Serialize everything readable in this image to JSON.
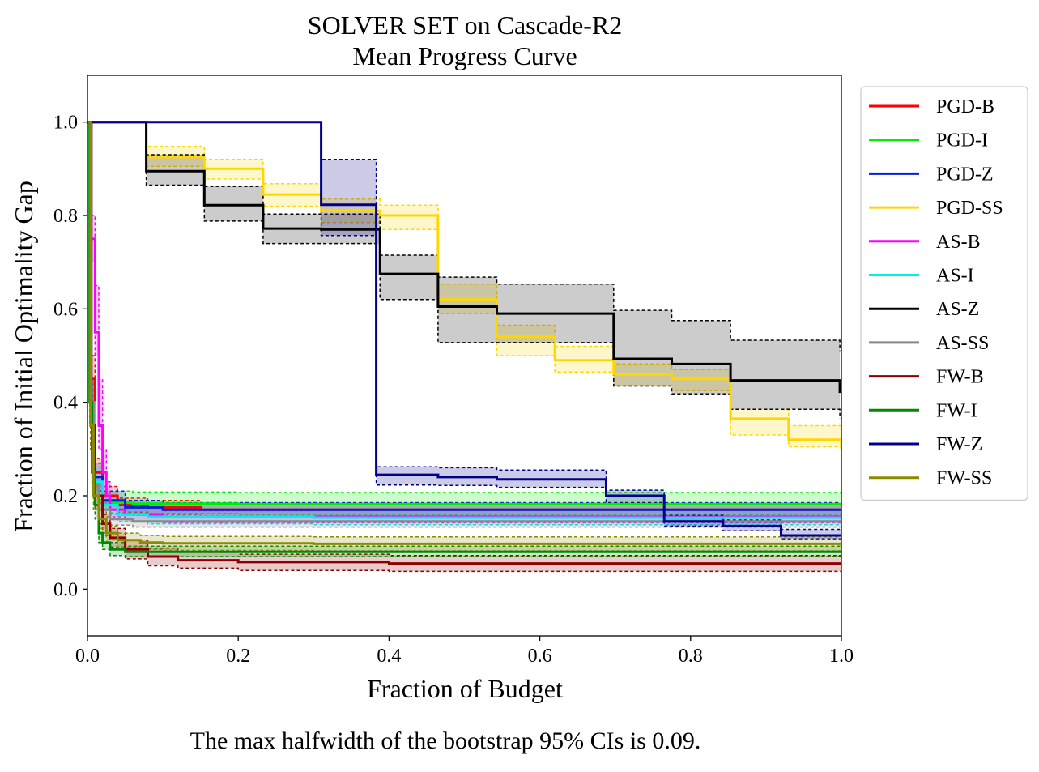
{
  "chart_data": {
    "type": "line",
    "title": "SOLVER SET on Cascade-R2",
    "subtitle": "Mean Progress Curve",
    "xlabel": "Fraction of Budget",
    "ylabel": "Fraction of Initial Optimality Gap",
    "xlim": [
      0.0,
      1.0
    ],
    "ylim": [
      -0.1,
      1.1
    ],
    "xticks": [
      "0.0",
      "0.2",
      "0.4",
      "0.6",
      "0.8",
      "1.0"
    ],
    "yticks": [
      "0.0",
      "0.2",
      "0.4",
      "0.6",
      "0.8",
      "1.0"
    ],
    "xtick_values": [
      0.0,
      0.2,
      0.4,
      0.6,
      0.8,
      1.0
    ],
    "ytick_values": [
      0.0,
      0.2,
      0.4,
      0.6,
      0.8,
      1.0
    ],
    "grid": false,
    "legend_position": "outside-right",
    "series": [
      {
        "name": "PGD-B",
        "color": "#ff0000",
        "x": [
          0,
          0.005,
          0.01,
          0.02,
          0.04,
          0.08,
          0.15,
          0.3,
          0.6,
          1.0
        ],
        "y": [
          1.0,
          0.45,
          0.25,
          0.2,
          0.18,
          0.175,
          0.17,
          0.17,
          0.17,
          0.17
        ],
        "lower": [
          1.0,
          0.4,
          0.22,
          0.18,
          0.165,
          0.16,
          0.155,
          0.155,
          0.155,
          0.155
        ],
        "upper": [
          1.0,
          0.5,
          0.28,
          0.22,
          0.195,
          0.19,
          0.185,
          0.185,
          0.185,
          0.185
        ]
      },
      {
        "name": "PGD-I",
        "color": "#00ee00",
        "x": [
          0,
          0.003,
          0.008,
          0.015,
          0.03,
          0.06,
          0.2,
          0.5,
          1.0
        ],
        "y": [
          1.0,
          0.4,
          0.22,
          0.19,
          0.185,
          0.183,
          0.182,
          0.182,
          0.182
        ],
        "lower": [
          1.0,
          0.35,
          0.2,
          0.17,
          0.163,
          0.162,
          0.16,
          0.16,
          0.16
        ],
        "upper": [
          1.0,
          0.45,
          0.24,
          0.21,
          0.21,
          0.208,
          0.207,
          0.207,
          0.207
        ]
      },
      {
        "name": "PGD-Z",
        "color": "#0022dd",
        "x": [
          0,
          0.005,
          0.01,
          0.02,
          0.05,
          0.1,
          0.3,
          0.6,
          1.0
        ],
        "y": [
          1.0,
          0.4,
          0.24,
          0.19,
          0.175,
          0.17,
          0.17,
          0.17,
          0.17
        ],
        "lower": [
          1.0,
          0.35,
          0.21,
          0.17,
          0.16,
          0.155,
          0.155,
          0.155,
          0.155
        ],
        "upper": [
          1.0,
          0.45,
          0.27,
          0.21,
          0.19,
          0.185,
          0.185,
          0.185,
          0.185
        ]
      },
      {
        "name": "PGD-SS",
        "color": "#ffd700",
        "x": [
          0,
          0.078,
          0.155,
          0.233,
          0.31,
          0.388,
          0.465,
          0.543,
          0.62,
          0.698,
          0.775,
          0.853,
          0.93,
          1.0
        ],
        "y": [
          1.0,
          0.925,
          0.9,
          0.845,
          0.81,
          0.8,
          0.62,
          0.54,
          0.49,
          0.46,
          0.45,
          0.365,
          0.32,
          0.3
        ],
        "lower": [
          1.0,
          0.905,
          0.878,
          0.82,
          0.785,
          0.77,
          0.59,
          0.5,
          0.465,
          0.435,
          0.425,
          0.33,
          0.305,
          0.29
        ],
        "upper": [
          1.0,
          0.948,
          0.92,
          0.868,
          0.835,
          0.822,
          0.653,
          0.565,
          0.52,
          0.482,
          0.47,
          0.385,
          0.35,
          0.33
        ]
      },
      {
        "name": "AS-B",
        "color": "#ff00ff",
        "x": [
          0,
          0.005,
          0.01,
          0.015,
          0.02,
          0.025,
          0.03,
          0.05,
          0.1,
          0.3,
          0.6,
          1.0
        ],
        "y": [
          1.0,
          0.75,
          0.55,
          0.35,
          0.25,
          0.2,
          0.17,
          0.16,
          0.155,
          0.155,
          0.155,
          0.155
        ],
        "lower": [
          1.0,
          0.7,
          0.5,
          0.3,
          0.22,
          0.18,
          0.155,
          0.145,
          0.142,
          0.142,
          0.142,
          0.142
        ],
        "upper": [
          1.0,
          0.8,
          0.65,
          0.45,
          0.3,
          0.23,
          0.19,
          0.175,
          0.168,
          0.168,
          0.168,
          0.168
        ]
      },
      {
        "name": "AS-I",
        "color": "#00eeee",
        "x": [
          0,
          0.005,
          0.01,
          0.02,
          0.04,
          0.08,
          0.3,
          0.6,
          1.0
        ],
        "y": [
          1.0,
          0.4,
          0.23,
          0.18,
          0.16,
          0.155,
          0.153,
          0.153,
          0.153
        ],
        "lower": [
          1.0,
          0.35,
          0.2,
          0.16,
          0.145,
          0.14,
          0.138,
          0.138,
          0.138
        ],
        "upper": [
          1.0,
          0.45,
          0.26,
          0.2,
          0.175,
          0.17,
          0.168,
          0.168,
          0.168
        ]
      },
      {
        "name": "AS-Z",
        "color": "#000000",
        "x": [
          0,
          0.078,
          0.155,
          0.233,
          0.31,
          0.388,
          0.465,
          0.543,
          0.62,
          0.698,
          0.775,
          0.853,
          0.93,
          0.998
        ],
        "y": [
          1.0,
          0.895,
          0.822,
          0.772,
          0.77,
          0.675,
          0.605,
          0.59,
          0.59,
          0.493,
          0.482,
          0.447,
          0.447,
          0.42
        ],
        "lower": [
          1.0,
          0.865,
          0.788,
          0.74,
          0.74,
          0.62,
          0.528,
          0.528,
          0.528,
          0.435,
          0.418,
          0.385,
          0.385,
          0.365
        ],
        "upper": [
          1.0,
          0.93,
          0.862,
          0.803,
          0.803,
          0.715,
          0.668,
          0.653,
          0.653,
          0.597,
          0.575,
          0.533,
          0.533,
          0.51
        ]
      },
      {
        "name": "AS-SS",
        "color": "#888888",
        "x": [
          0,
          0.003,
          0.008,
          0.015,
          0.03,
          0.06,
          0.3,
          0.6,
          1.0
        ],
        "y": [
          1.0,
          0.4,
          0.22,
          0.17,
          0.15,
          0.145,
          0.145,
          0.145,
          0.145
        ],
        "lower": [
          1.0,
          0.35,
          0.2,
          0.155,
          0.137,
          0.133,
          0.133,
          0.133,
          0.133
        ],
        "upper": [
          1.0,
          0.45,
          0.24,
          0.185,
          0.162,
          0.158,
          0.158,
          0.158,
          0.158
        ]
      },
      {
        "name": "FW-B",
        "color": "#8b0000",
        "x": [
          0,
          0.005,
          0.01,
          0.02,
          0.03,
          0.05,
          0.08,
          0.12,
          0.2,
          0.4,
          0.7,
          1.0
        ],
        "y": [
          1.0,
          0.35,
          0.2,
          0.14,
          0.11,
          0.085,
          0.07,
          0.062,
          0.058,
          0.055,
          0.055,
          0.055
        ],
        "lower": [
          1.0,
          0.3,
          0.17,
          0.12,
          0.09,
          0.065,
          0.05,
          0.045,
          0.04,
          0.038,
          0.038,
          0.038
        ],
        "upper": [
          1.0,
          0.4,
          0.23,
          0.16,
          0.13,
          0.105,
          0.088,
          0.08,
          0.075,
          0.072,
          0.072,
          0.072
        ]
      },
      {
        "name": "FW-I",
        "color": "#008800",
        "x": [
          0,
          0.003,
          0.006,
          0.01,
          0.015,
          0.02,
          0.03,
          0.05,
          0.1,
          0.3,
          0.6,
          1.0
        ],
        "y": [
          1.0,
          0.4,
          0.25,
          0.18,
          0.12,
          0.1,
          0.085,
          0.08,
          0.08,
          0.08,
          0.08,
          0.08
        ],
        "lower": [
          1.0,
          0.35,
          0.22,
          0.15,
          0.1,
          0.085,
          0.072,
          0.07,
          0.07,
          0.07,
          0.07,
          0.07
        ],
        "upper": [
          1.0,
          0.45,
          0.28,
          0.2,
          0.14,
          0.115,
          0.1,
          0.092,
          0.092,
          0.092,
          0.092,
          0.092
        ]
      },
      {
        "name": "FW-Z",
        "color": "#00008b",
        "x": [
          0,
          0.078,
          0.155,
          0.233,
          0.31,
          0.383,
          0.465,
          0.543,
          0.62,
          0.688,
          0.765,
          0.843,
          0.92,
          1.0
        ],
        "y": [
          1.0,
          1.0,
          1.0,
          1.0,
          0.823,
          0.245,
          0.24,
          0.235,
          0.235,
          0.2,
          0.145,
          0.135,
          0.115,
          0.113
        ],
        "lower": [
          1.0,
          1.0,
          1.0,
          1.0,
          0.757,
          0.223,
          0.222,
          0.218,
          0.218,
          0.185,
          0.135,
          0.125,
          0.108,
          0.108
        ],
        "upper": [
          1.0,
          1.0,
          1.0,
          1.0,
          0.92,
          0.262,
          0.26,
          0.255,
          0.255,
          0.212,
          0.158,
          0.148,
          0.128,
          0.128
        ]
      },
      {
        "name": "FW-SS",
        "color": "#8b8b00",
        "x": [
          0,
          0.004,
          0.008,
          0.015,
          0.025,
          0.04,
          0.07,
          0.1,
          0.3,
          0.6,
          1.0
        ],
        "y": [
          1.0,
          0.35,
          0.2,
          0.15,
          0.12,
          0.105,
          0.1,
          0.098,
          0.097,
          0.097,
          0.097
        ],
        "lower": [
          1.0,
          0.3,
          0.17,
          0.13,
          0.105,
          0.09,
          0.085,
          0.083,
          0.082,
          0.082,
          0.082
        ],
        "upper": [
          1.0,
          0.4,
          0.23,
          0.17,
          0.135,
          0.12,
          0.115,
          0.113,
          0.112,
          0.112,
          0.112
        ]
      }
    ],
    "footnote": "The max halfwidth of the bootstrap 95% CIs is 0.09."
  }
}
